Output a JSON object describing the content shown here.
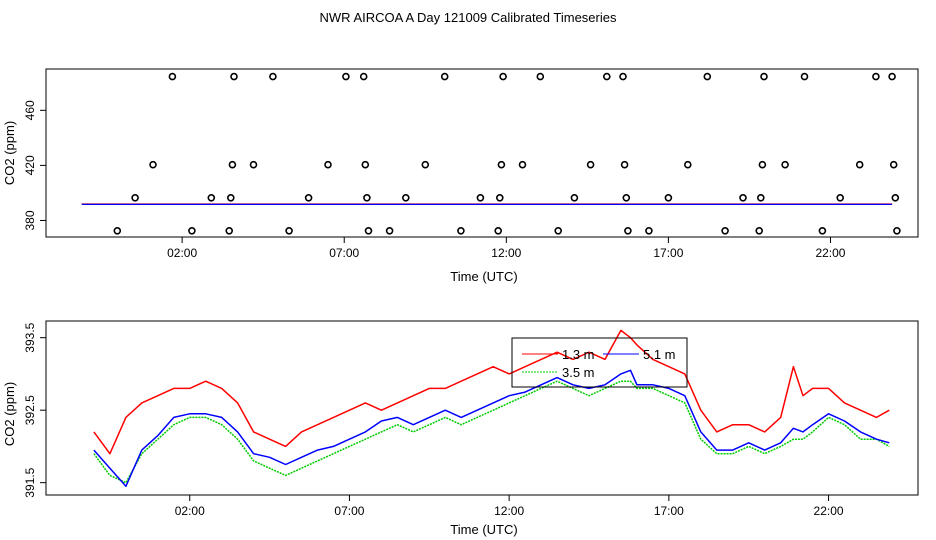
{
  "title": "NWR AIRCOA A  Day 121009  Calibrated Timeseries",
  "chart_data": [
    {
      "type": "scatter",
      "title": "",
      "xlabel": "Time (UTC)",
      "ylabel": "CO2 (ppm)",
      "x_ticks": [
        "02:00",
        "07:00",
        "12:00",
        "17:00",
        "22:00"
      ],
      "x_tick_hours": [
        2,
        7,
        12,
        17,
        22
      ],
      "xlim": [
        -2.2,
        24.7
      ],
      "y_ticks": [
        "380",
        "420",
        "460"
      ],
      "y_tick_values": [
        380,
        420,
        460
      ],
      "ylim": [
        368,
        490
      ],
      "grid": false,
      "legend": "none",
      "point_series": {
        "name": "",
        "marker": "open-circle",
        "color": "#000000",
        "points": [
          [
            0.0,
            372.5
          ],
          [
            0.55,
            396.5
          ],
          [
            1.1,
            420.5
          ],
          [
            1.7,
            484.5
          ],
          [
            2.3,
            372.5
          ],
          [
            2.9,
            396.5
          ],
          [
            3.45,
            372.5
          ],
          [
            3.5,
            396.5
          ],
          [
            3.55,
            420.5
          ],
          [
            3.6,
            484.5
          ],
          [
            4.2,
            420.5
          ],
          [
            4.8,
            484.5
          ],
          [
            5.3,
            372.5
          ],
          [
            5.9,
            396.5
          ],
          [
            6.5,
            420.5
          ],
          [
            7.05,
            484.5
          ],
          [
            7.6,
            484.5
          ],
          [
            7.65,
            420.5
          ],
          [
            7.7,
            396.5
          ],
          [
            7.75,
            372.5
          ],
          [
            8.4,
            372.5
          ],
          [
            8.9,
            396.5
          ],
          [
            9.5,
            420.5
          ],
          [
            10.1,
            484.5
          ],
          [
            10.6,
            372.5
          ],
          [
            11.2,
            396.5
          ],
          [
            11.8,
            396.5
          ],
          [
            11.75,
            372.5
          ],
          [
            11.85,
            420.5
          ],
          [
            11.9,
            484.5
          ],
          [
            12.5,
            420.5
          ],
          [
            13.05,
            484.5
          ],
          [
            13.6,
            372.5
          ],
          [
            14.1,
            396.5
          ],
          [
            14.6,
            420.5
          ],
          [
            15.1,
            484.5
          ],
          [
            15.6,
            484.5
          ],
          [
            15.65,
            420.5
          ],
          [
            15.7,
            396.5
          ],
          [
            15.75,
            372.5
          ],
          [
            16.4,
            372.5
          ],
          [
            17.0,
            396.5
          ],
          [
            17.6,
            420.5
          ],
          [
            18.2,
            484.5
          ],
          [
            18.75,
            372.5
          ],
          [
            19.3,
            396.5
          ],
          [
            19.8,
            372.5
          ],
          [
            19.85,
            396.5
          ],
          [
            19.9,
            420.5
          ],
          [
            19.95,
            484.5
          ],
          [
            20.6,
            420.5
          ],
          [
            21.2,
            484.5
          ],
          [
            21.75,
            372.5
          ],
          [
            22.3,
            396.5
          ],
          [
            22.9,
            420.5
          ],
          [
            23.4,
            484.5
          ],
          [
            23.9,
            484.5
          ],
          [
            23.95,
            420.5
          ],
          [
            24.0,
            396.5
          ],
          [
            24.05,
            372.5
          ]
        ]
      },
      "line_series": [
        {
          "name": "",
          "color": "#ff0000",
          "x": [
            -1.1,
            23.9
          ],
          "y": [
            392.0,
            392.0
          ]
        },
        {
          "name": "",
          "color": "#0000ff",
          "x": [
            -1.1,
            23.9
          ],
          "y": [
            391.7,
            391.7
          ]
        }
      ]
    },
    {
      "type": "line",
      "title": "",
      "xlabel": "Time (UTC)",
      "ylabel": "CO2 (ppm)",
      "x_ticks": [
        "02:00",
        "07:00",
        "12:00",
        "17:00",
        "22:00"
      ],
      "x_tick_hours": [
        2,
        7,
        12,
        17,
        22
      ],
      "xlim": [
        -2.5,
        24.8
      ],
      "y_ticks": [
        "391.5",
        "392.5",
        "393.5"
      ],
      "y_tick_values": [
        391.5,
        392.5,
        393.5
      ],
      "ylim": [
        391.33,
        393.73
      ],
      "grid": false,
      "legend": "top-center",
      "series": [
        {
          "name": "1.3 m",
          "color": "#ff0000",
          "x": [
            -1.0,
            -0.5,
            0.0,
            0.5,
            1.0,
            1.5,
            2.0,
            2.5,
            3.0,
            3.5,
            4.0,
            4.5,
            5.0,
            5.5,
            6.0,
            6.5,
            7.0,
            7.5,
            8.0,
            8.5,
            9.0,
            9.5,
            10.0,
            10.5,
            11.0,
            11.5,
            12.0,
            12.5,
            13.0,
            13.5,
            14.0,
            14.5,
            15.0,
            15.5,
            15.8,
            16.0,
            16.5,
            17.0,
            17.5,
            18.0,
            18.5,
            19.0,
            19.5,
            20.0,
            20.5,
            20.9,
            21.2,
            21.5,
            22.0,
            22.5,
            23.0,
            23.5,
            23.9
          ],
          "y": [
            392.2,
            391.9,
            392.4,
            392.6,
            392.7,
            392.8,
            392.8,
            392.9,
            392.8,
            392.6,
            392.2,
            392.1,
            392.0,
            392.2,
            392.3,
            392.4,
            392.5,
            392.6,
            392.5,
            392.6,
            392.7,
            392.8,
            392.8,
            392.9,
            393.0,
            393.1,
            393.0,
            393.1,
            393.2,
            393.3,
            393.2,
            393.3,
            393.2,
            393.6,
            393.5,
            393.4,
            393.2,
            393.1,
            393.0,
            392.5,
            392.2,
            392.3,
            392.3,
            392.2,
            392.4,
            393.1,
            392.7,
            392.8,
            392.8,
            392.6,
            392.5,
            392.4,
            392.5
          ]
        },
        {
          "name": "3.5 m",
          "color": "#00cc00",
          "x": [
            -1.0,
            -0.5,
            0.0,
            0.5,
            1.0,
            1.5,
            2.0,
            2.5,
            3.0,
            3.5,
            4.0,
            4.5,
            5.0,
            5.5,
            6.0,
            6.5,
            7.0,
            7.5,
            8.0,
            8.5,
            9.0,
            9.5,
            10.0,
            10.5,
            11.0,
            11.5,
            12.0,
            12.5,
            13.0,
            13.5,
            14.0,
            14.5,
            15.0,
            15.5,
            15.8,
            16.0,
            16.5,
            17.0,
            17.5,
            18.0,
            18.5,
            19.0,
            19.5,
            20.0,
            20.5,
            20.9,
            21.2,
            21.5,
            22.0,
            22.5,
            23.0,
            23.5,
            23.9
          ],
          "y": [
            391.9,
            391.6,
            391.5,
            391.9,
            392.1,
            392.3,
            392.4,
            392.4,
            392.3,
            392.1,
            391.8,
            391.7,
            391.6,
            391.7,
            391.8,
            391.9,
            392.0,
            392.1,
            392.2,
            392.3,
            392.2,
            392.3,
            392.4,
            392.3,
            392.4,
            392.5,
            392.6,
            392.7,
            392.8,
            392.9,
            392.8,
            392.7,
            392.8,
            392.9,
            392.9,
            392.8,
            392.8,
            392.7,
            392.6,
            392.1,
            391.9,
            391.9,
            392.0,
            391.9,
            392.0,
            392.1,
            392.1,
            392.2,
            392.4,
            392.3,
            392.1,
            392.1,
            392.0
          ]
        },
        {
          "name": "5.1 m",
          "color": "#0000ff",
          "x": [
            -1.0,
            -0.5,
            0.0,
            0.5,
            1.0,
            1.5,
            2.0,
            2.5,
            3.0,
            3.5,
            4.0,
            4.5,
            5.0,
            5.5,
            6.0,
            6.5,
            7.0,
            7.5,
            8.0,
            8.5,
            9.0,
            9.5,
            10.0,
            10.5,
            11.0,
            11.5,
            12.0,
            12.5,
            13.0,
            13.5,
            14.0,
            14.5,
            15.0,
            15.5,
            15.8,
            16.0,
            16.5,
            17.0,
            17.5,
            18.0,
            18.5,
            19.0,
            19.5,
            20.0,
            20.5,
            20.9,
            21.2,
            21.5,
            22.0,
            22.5,
            23.0,
            23.5,
            23.9
          ],
          "y": [
            391.95,
            391.7,
            391.45,
            391.95,
            392.15,
            392.4,
            392.45,
            392.45,
            392.4,
            392.2,
            391.9,
            391.85,
            391.75,
            391.85,
            391.95,
            392.0,
            392.1,
            392.2,
            392.35,
            392.4,
            392.3,
            392.4,
            392.5,
            392.4,
            392.5,
            392.6,
            392.7,
            392.75,
            392.85,
            392.95,
            392.85,
            392.8,
            392.85,
            393.0,
            393.05,
            392.85,
            392.85,
            392.8,
            392.7,
            392.2,
            391.95,
            391.95,
            392.05,
            391.95,
            392.05,
            392.25,
            392.2,
            392.3,
            392.45,
            392.35,
            392.2,
            392.1,
            392.05
          ]
        }
      ]
    }
  ]
}
